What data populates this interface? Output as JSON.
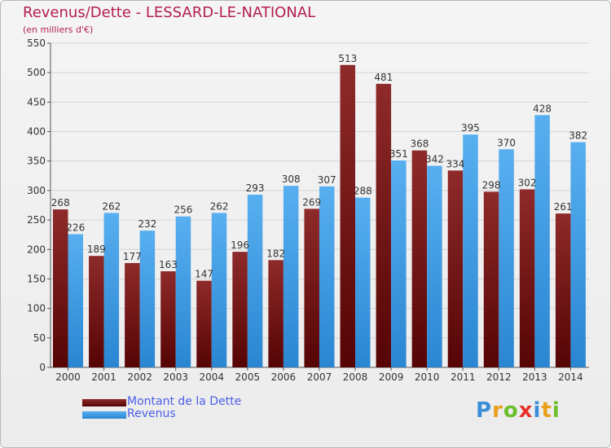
{
  "chart_data": {
    "type": "bar",
    "title": "Revenus/Dette - LESSARD-LE-NATIONAL",
    "subtitle": "(en milliers d'€)",
    "categories": [
      "2000",
      "2001",
      "2002",
      "2003",
      "2004",
      "2005",
      "2006",
      "2007",
      "2008",
      "2009",
      "2010",
      "2011",
      "2012",
      "2013",
      "2014"
    ],
    "series": [
      {
        "name": "Montant de la Dette",
        "color": "#7a1a1a",
        "values": [
          268,
          189,
          177,
          163,
          147,
          196,
          182,
          269,
          513,
          481,
          368,
          334,
          298,
          302,
          261
        ]
      },
      {
        "name": "Revenus",
        "color": "#3d9be3",
        "values": [
          226,
          262,
          232,
          256,
          262,
          293,
          308,
          307,
          288,
          351,
          342,
          395,
          370,
          428,
          382
        ]
      }
    ],
    "yticks": [
      0,
      50,
      100,
      150,
      200,
      250,
      300,
      350,
      400,
      450,
      500,
      550
    ],
    "ylim": [
      0,
      550
    ],
    "grid": true,
    "legend_position": "bottom-left"
  },
  "branding": {
    "logo_letters": [
      {
        "char": "P",
        "color": "#3b8fd8"
      },
      {
        "char": "r",
        "color": "#e8a019"
      },
      {
        "char": "o",
        "color": "#6cbf2a"
      },
      {
        "char": "x",
        "color": "#e8302a"
      },
      {
        "char": "i",
        "color": "#3b8fd8"
      },
      {
        "char": "t",
        "color": "#e8a019"
      },
      {
        "char": "i",
        "color": "#6cbf2a"
      }
    ]
  }
}
